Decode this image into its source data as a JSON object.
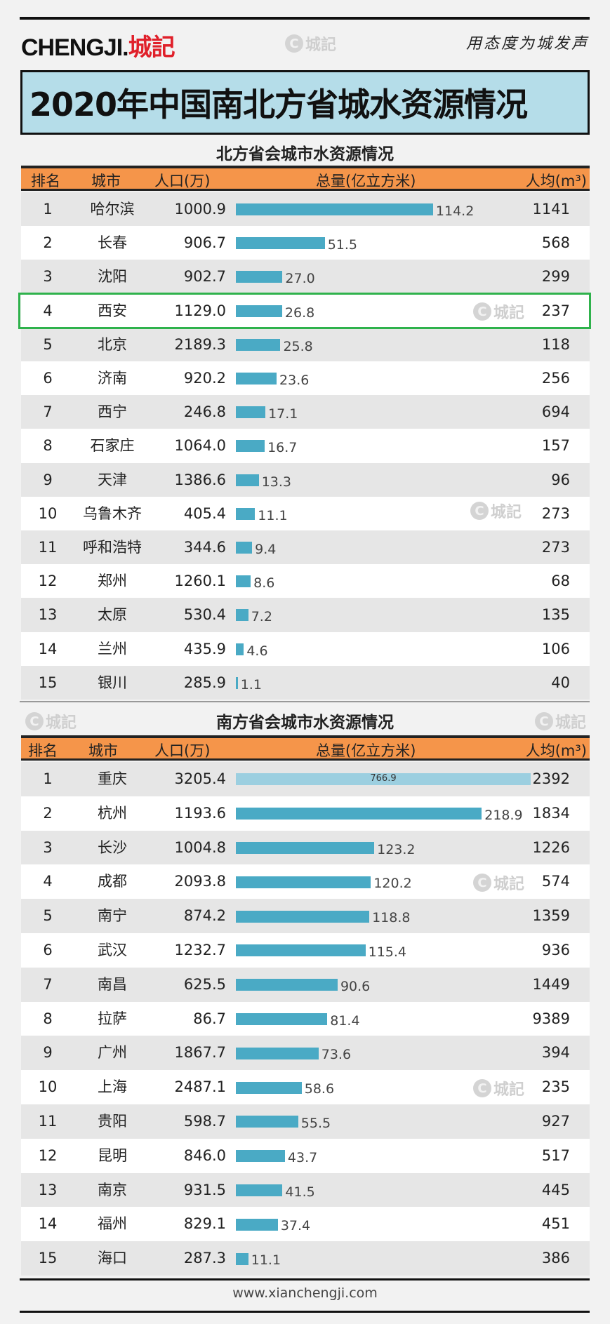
{
  "header": {
    "logo_text": "CHENGJI.",
    "logo_cn": "城記",
    "slogan": "用态度为城发声",
    "watermark": "城記"
  },
  "title": "2020年中国南北方省城水资源情况",
  "columns": {
    "rank": "排名",
    "city": "城市",
    "pop": "人口(万)",
    "total": "总量(亿立方米)",
    "per": "人均(m³)"
  },
  "north": {
    "subtitle": "北方省会城市水资源情况",
    "highlight_rank": 4,
    "rows": [
      [
        "1",
        "哈尔滨",
        "1000.9",
        "114.2",
        "1141"
      ],
      [
        "2",
        "长春",
        "906.7",
        "51.5",
        "568"
      ],
      [
        "3",
        "沈阳",
        "902.7",
        "27.0",
        "299"
      ],
      [
        "4",
        "西安",
        "1129.0",
        "26.8",
        "237"
      ],
      [
        "5",
        "北京",
        "2189.3",
        "25.8",
        "118"
      ],
      [
        "6",
        "济南",
        "920.2",
        "23.6",
        "256"
      ],
      [
        "7",
        "西宁",
        "246.8",
        "17.1",
        "694"
      ],
      [
        "8",
        "石家庄",
        "1064.0",
        "16.7",
        "157"
      ],
      [
        "9",
        "天津",
        "1386.6",
        "13.3",
        "96"
      ],
      [
        "10",
        "乌鲁木齐",
        "405.4",
        "11.1",
        "273"
      ],
      [
        "11",
        "呼和浩特",
        "344.6",
        "9.4",
        "273"
      ],
      [
        "12",
        "郑州",
        "1260.1",
        "8.6",
        "68"
      ],
      [
        "13",
        "太原",
        "530.4",
        "7.2",
        "135"
      ],
      [
        "14",
        "兰州",
        "435.9",
        "4.6",
        "106"
      ],
      [
        "15",
        "银川",
        "285.9",
        "1.1",
        "40"
      ]
    ]
  },
  "south": {
    "subtitle": "南方省会城市水资源情况",
    "rows": [
      [
        "1",
        "重庆",
        "3205.4",
        "766.9",
        "2392"
      ],
      [
        "2",
        "杭州",
        "1193.6",
        "218.9",
        "1834"
      ],
      [
        "3",
        "长沙",
        "1004.8",
        "123.2",
        "1226"
      ],
      [
        "4",
        "成都",
        "2093.8",
        "120.2",
        "574"
      ],
      [
        "5",
        "南宁",
        "874.2",
        "118.8",
        "1359"
      ],
      [
        "6",
        "武汉",
        "1232.7",
        "115.4",
        "936"
      ],
      [
        "7",
        "南昌",
        "625.5",
        "90.6",
        "1449"
      ],
      [
        "8",
        "拉萨",
        "86.7",
        "81.4",
        "9389"
      ],
      [
        "9",
        "广州",
        "1867.7",
        "73.6",
        "394"
      ],
      [
        "10",
        "上海",
        "2487.1",
        "58.6",
        "235"
      ],
      [
        "11",
        "贵阳",
        "598.7",
        "55.5",
        "927"
      ],
      [
        "12",
        "昆明",
        "846.0",
        "43.7",
        "517"
      ],
      [
        "13",
        "南京",
        "931.5",
        "41.5",
        "445"
      ],
      [
        "14",
        "福州",
        "829.1",
        "37.4",
        "451"
      ],
      [
        "15",
        "海口",
        "287.3",
        "11.1",
        "386"
      ]
    ]
  },
  "colors": {
    "bar": "#4aaac5",
    "bar_capped": "#9ccfe0",
    "header": "#f5954a",
    "highlight": "#2fb24c",
    "title_bg": "#b5dde9"
  },
  "footer": "www.xianchengji.com"
}
